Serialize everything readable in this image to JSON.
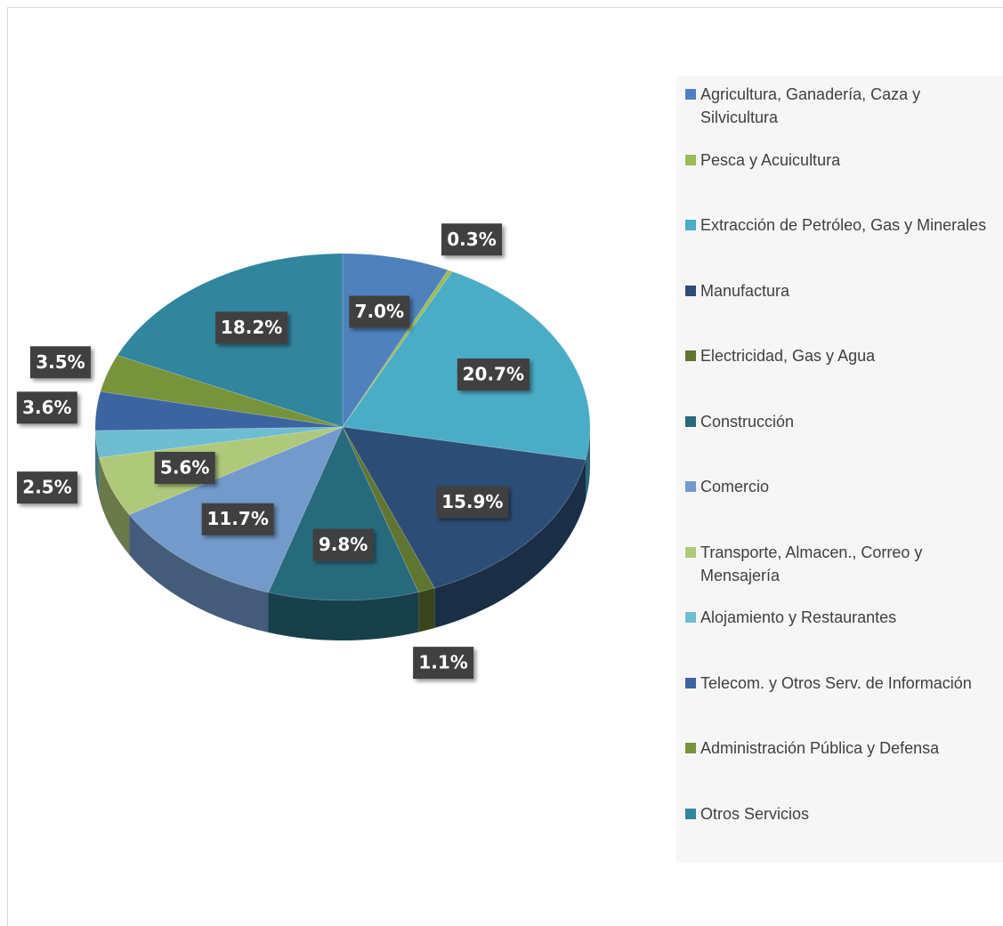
{
  "chart_data": {
    "type": "pie",
    "categories": [
      "Agricultura, Ganadería, Caza y Silvicultura",
      "Pesca y Acuicultura",
      "Extracción de Petróleo, Gas y Minerales",
      "Manufactura",
      "Electricidad, Gas y Agua",
      "Construcción",
      "Comercio",
      "Transporte, Almacen., Correo y Mensajería",
      "Alojamiento y Restaurantes",
      "Telecom. y Otros Serv. de Información",
      "Administración Pública y Defensa",
      "Otros Servicios"
    ],
    "values": [
      7.0,
      0.3,
      20.7,
      15.9,
      1.1,
      9.8,
      11.7,
      5.6,
      2.5,
      3.6,
      3.5,
      18.2
    ],
    "value_labels": [
      "7.0%",
      "0.3%",
      "20.7%",
      "15.9%",
      "1.1%",
      "9.8%",
      "11.7%",
      "5.6%",
      "2.5%",
      "3.6%",
      "3.5%",
      "18.2%"
    ],
    "colors": [
      "#4f81bd",
      "#9bbb59",
      "#4bacc6",
      "#2c4d75",
      "#5f7530",
      "#276a7c",
      "#729aca",
      "#afc97a",
      "#6fbdd1",
      "#3b64a0",
      "#77933c",
      "#31859c"
    ],
    "legend": "right"
  }
}
